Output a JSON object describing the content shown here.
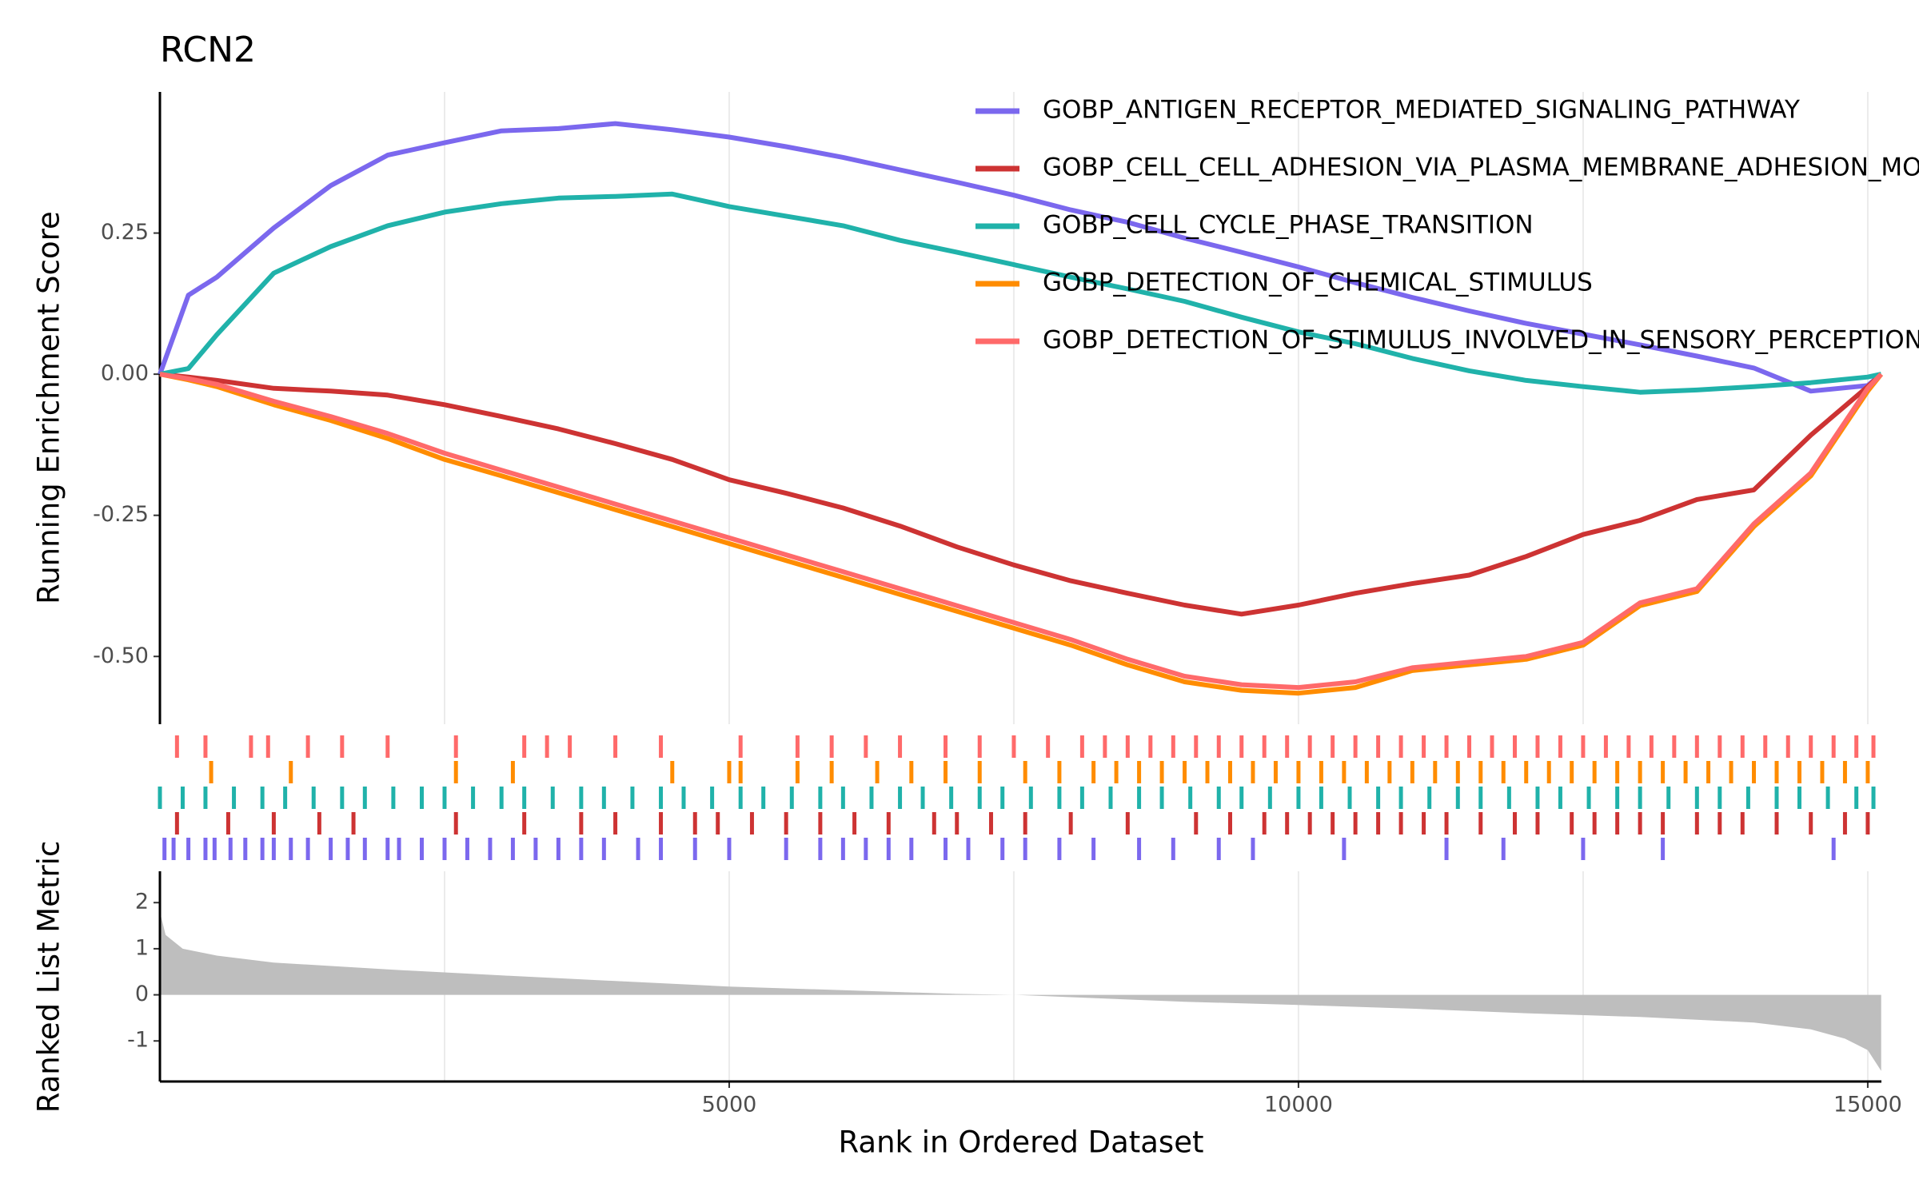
{
  "chart_data": [
    {
      "type": "line",
      "title": "RCN2",
      "y_label": "Running Enrichment Score",
      "xlim": [
        0,
        15120
      ],
      "ylim": [
        -0.62,
        0.5
      ],
      "yticks": [
        {
          "value": -0.5,
          "label": "-0.50"
        },
        -0.25,
        {
          "value": 0,
          "label": "0.00"
        },
        0.25
      ],
      "xgrid": [
        2500,
        5000,
        7500,
        10000,
        12500,
        15000
      ],
      "legend": "top-right",
      "x": [
        0,
        250,
        500,
        1000,
        1500,
        2000,
        2500,
        3000,
        3500,
        4000,
        4500,
        5000,
        5500,
        6000,
        6500,
        7000,
        7500,
        8000,
        8500,
        9000,
        9500,
        10000,
        10500,
        11000,
        11500,
        12000,
        12500,
        13000,
        13500,
        14000,
        14500,
        15000,
        15118
      ],
      "series": [
        {
          "name": "GOBP_ANTIGEN_RECEPTOR_MEDIATED_SIGNALING_PATHWAY",
          "color": "#7b68ee",
          "values": [
            0,
            0.14,
            0.172,
            0.259,
            0.334,
            0.388,
            0.41,
            0.431,
            0.435,
            0.444,
            0.433,
            0.42,
            0.403,
            0.384,
            0.362,
            0.34,
            0.317,
            0.291,
            0.269,
            0.241,
            0.216,
            0.19,
            0.162,
            0.136,
            0.112,
            0.09,
            0.071,
            0.052,
            0.032,
            0.011,
            -0.03,
            -0.02,
            0
          ]
        },
        {
          "name": "GOBP_CELL_CELL_ADHESION_VIA_PLASMA_MEMBRANE_ADHESION_MOLECULES",
          "color": "#cd3333",
          "values": [
            0,
            -0.005,
            -0.011,
            -0.025,
            -0.03,
            -0.037,
            -0.054,
            -0.075,
            -0.097,
            -0.123,
            -0.151,
            -0.187,
            -0.211,
            -0.237,
            -0.269,
            -0.306,
            -0.338,
            -0.366,
            -0.388,
            -0.409,
            -0.425,
            -0.409,
            -0.388,
            -0.371,
            -0.356,
            -0.323,
            -0.284,
            -0.259,
            -0.222,
            -0.205,
            -0.108,
            -0.022,
            0
          ]
        },
        {
          "name": "GOBP_CELL_CYCLE_PHASE_TRANSITION",
          "color": "#20b2aa",
          "values": [
            0,
            0.01,
            0.07,
            0.179,
            0.226,
            0.263,
            0.287,
            0.302,
            0.312,
            0.315,
            0.319,
            0.297,
            0.28,
            0.263,
            0.237,
            0.216,
            0.194,
            0.172,
            0.151,
            0.129,
            0.101,
            0.075,
            0.054,
            0.028,
            0.006,
            -0.011,
            -0.022,
            -0.032,
            -0.028,
            -0.022,
            -0.015,
            -0.005,
            0
          ]
        },
        {
          "name": "GOBP_DETECTION_OF_CHEMICAL_STIMULUS",
          "color": "#ff8c00",
          "values": [
            0,
            -0.01,
            -0.022,
            -0.054,
            -0.082,
            -0.114,
            -0.151,
            -0.18,
            -0.21,
            -0.24,
            -0.27,
            -0.3,
            -0.33,
            -0.36,
            -0.39,
            -0.42,
            -0.45,
            -0.48,
            -0.515,
            -0.545,
            -0.56,
            -0.565,
            -0.555,
            -0.525,
            -0.515,
            -0.505,
            -0.48,
            -0.41,
            -0.385,
            -0.27,
            -0.18,
            -0.03,
            0
          ]
        },
        {
          "name": "GOBP_DETECTION_OF_STIMULUS_INVOLVED_IN_SENSORY_PERCEPTION",
          "color": "#ff6a6a",
          "values": [
            0,
            -0.008,
            -0.018,
            -0.048,
            -0.075,
            -0.105,
            -0.14,
            -0.17,
            -0.2,
            -0.23,
            -0.26,
            -0.29,
            -0.32,
            -0.35,
            -0.38,
            -0.41,
            -0.44,
            -0.47,
            -0.505,
            -0.535,
            -0.55,
            -0.555,
            -0.545,
            -0.52,
            -0.51,
            -0.5,
            -0.475,
            -0.405,
            -0.38,
            -0.265,
            -0.175,
            -0.025,
            0
          ]
        }
      ]
    },
    {
      "type": "rug",
      "xlim": [
        0,
        15120
      ],
      "series": [
        {
          "color": "#7b68ee",
          "hits": [
            40,
            120,
            250,
            400,
            480,
            620,
            750,
            900,
            1000,
            1150,
            1300,
            1500,
            1650,
            1800,
            2000,
            2100,
            2300,
            2500,
            2700,
            2900,
            3100,
            3300,
            3500,
            3700,
            3900,
            4200,
            4400,
            4700,
            5000,
            5500,
            5800,
            6000,
            6200,
            6400,
            6600,
            6900,
            7100,
            7400,
            7600,
            7900,
            8200,
            8600,
            8900,
            9300,
            9600,
            10400,
            11300,
            11800,
            12500,
            13200,
            14700
          ]
        },
        {
          "color": "#cd3333",
          "hits": [
            150,
            600,
            1000,
            1400,
            1700,
            2600,
            3200,
            3700,
            4000,
            4400,
            4700,
            4900,
            5200,
            5500,
            5800,
            6100,
            6400,
            6800,
            7000,
            7300,
            7600,
            8000,
            8500,
            9100,
            9400,
            9700,
            9900,
            10100,
            10300,
            10500,
            10700,
            10900,
            11100,
            11300,
            11600,
            11900,
            12100,
            12400,
            12600,
            12800,
            13000,
            13200,
            13500,
            13700,
            13900,
            14200,
            14500,
            14800,
            15000
          ]
        },
        {
          "color": "#20b2aa",
          "hits": [
            0,
            200,
            400,
            650,
            900,
            1100,
            1350,
            1600,
            1800,
            2050,
            2300,
            2500,
            2750,
            3000,
            3200,
            3450,
            3700,
            3900,
            4150,
            4400,
            4600,
            4850,
            5100,
            5300,
            5550,
            5800,
            6000,
            6250,
            6500,
            6700,
            6950,
            7200,
            7400,
            7650,
            7900,
            8100,
            8350,
            8600,
            8800,
            9050,
            9300,
            9500,
            9750,
            10000,
            10200,
            10450,
            10700,
            10900,
            11150,
            11400,
            11600,
            11850,
            12100,
            12300,
            12550,
            12800,
            13000,
            13250,
            13500,
            13700,
            13950,
            14200,
            14400,
            14650,
            14900,
            15050
          ]
        },
        {
          "color": "#ff8c00",
          "hits": [
            450,
            1150,
            2600,
            3100,
            4500,
            5000,
            5100,
            5600,
            5900,
            6300,
            6600,
            6900,
            7200,
            7600,
            7900,
            8200,
            8400,
            8600,
            8800,
            9000,
            9200,
            9400,
            9600,
            9800,
            10000,
            10200,
            10400,
            10600,
            10800,
            11000,
            11200,
            11400,
            11600,
            11800,
            12000,
            12200,
            12400,
            12600,
            12800,
            13000,
            13200,
            13400,
            13600,
            13800,
            14000,
            14200,
            14400,
            14600,
            14800,
            15000
          ]
        },
        {
          "color": "#ff6a6a",
          "hits": [
            150,
            400,
            800,
            950,
            1300,
            1600,
            2000,
            2600,
            3200,
            3400,
            3600,
            4000,
            4400,
            5100,
            5600,
            5900,
            6200,
            6500,
            6900,
            7200,
            7500,
            7800,
            8100,
            8300,
            8500,
            8700,
            8900,
            9100,
            9300,
            9500,
            9700,
            9900,
            10100,
            10300,
            10500,
            10700,
            10900,
            11100,
            11300,
            11500,
            11700,
            11900,
            12100,
            12300,
            12500,
            12700,
            12900,
            13100,
            13300,
            13500,
            13700,
            13900,
            14100,
            14300,
            14500,
            14700,
            14900,
            15050
          ]
        }
      ]
    },
    {
      "type": "area",
      "y_label": "Ranked List Metric",
      "x_label": "Rank in Ordered Dataset",
      "xlim": [
        0,
        15120
      ],
      "ylim": [
        -1.88,
        2.68
      ],
      "yticks": [
        -1,
        0,
        1,
        2
      ],
      "xticks": [
        5000,
        10000,
        15000
      ],
      "xgrid": [
        2500,
        5000,
        7500,
        10000,
        12500,
        15000
      ],
      "color": "#bebebe",
      "x": [
        0,
        50,
        200,
        500,
        1000,
        2000,
        3000,
        4000,
        5000,
        6000,
        7000,
        7500,
        8000,
        9000,
        10000,
        11000,
        12000,
        13000,
        14000,
        14500,
        14800,
        15000,
        15118
      ],
      "values": [
        1.8,
        1.3,
        1.0,
        0.85,
        0.7,
        0.55,
        0.42,
        0.3,
        0.18,
        0.1,
        0.02,
        0,
        -0.05,
        -0.15,
        -0.22,
        -0.3,
        -0.4,
        -0.48,
        -0.6,
        -0.75,
        -0.95,
        -1.2,
        -1.65
      ]
    }
  ]
}
